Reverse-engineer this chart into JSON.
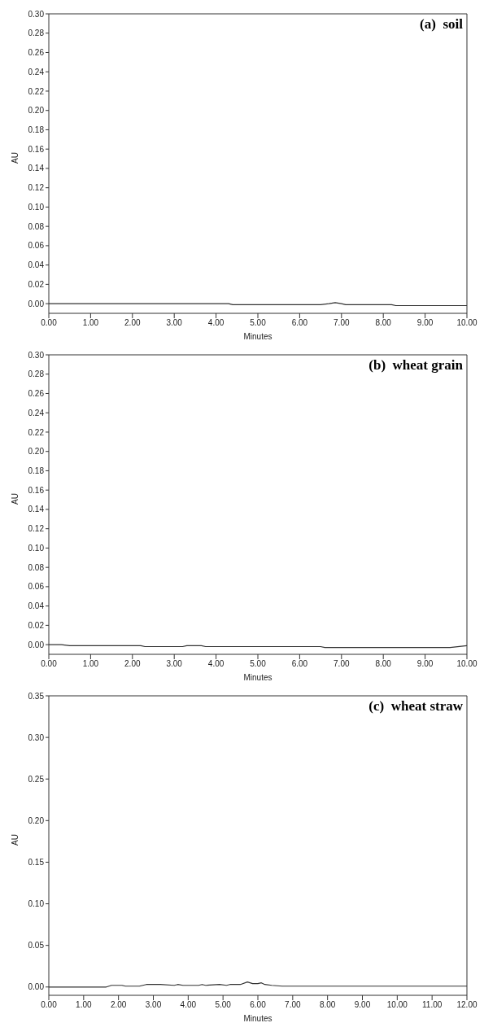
{
  "chart_data": [
    {
      "type": "line",
      "title": "(a)  soil",
      "xlabel": "Minutes",
      "ylabel": "AU",
      "x": [
        0,
        4.3,
        4.4,
        6.5,
        6.7,
        6.85,
        7.0,
        7.1,
        8.2,
        8.3,
        10.0
      ],
      "series": [
        {
          "color": "#333333",
          "values": [
            0,
            0,
            -0.001,
            -0.001,
            0,
            0.001,
            0,
            -0.001,
            -0.001,
            -0.002,
            -0.002
          ]
        }
      ],
      "xlim": [
        0,
        10
      ],
      "xticks": [
        {
          "value": 0,
          "label": "0.00"
        },
        {
          "value": 1,
          "label": "1.00"
        },
        {
          "value": 2,
          "label": "2.00"
        },
        {
          "value": 3,
          "label": "3.00"
        },
        {
          "value": 4,
          "label": "4.00"
        },
        {
          "value": 5,
          "label": "5.00"
        },
        {
          "value": 6,
          "label": "6.00"
        },
        {
          "value": 7,
          "label": "7.00"
        },
        {
          "value": 8,
          "label": "8.00"
        },
        {
          "value": 9,
          "label": "9.00"
        },
        {
          "value": 10,
          "label": "10.00"
        }
      ],
      "ylim": [
        -0.01,
        0.3
      ],
      "yticks": [
        {
          "value": 0,
          "label": "0.00"
        },
        0.02,
        0.04,
        0.06,
        0.08,
        {
          "value": 0.1,
          "label": "0.10"
        },
        0.12,
        0.14,
        0.16,
        0.18,
        {
          "value": 0.2,
          "label": "0.20"
        },
        0.22,
        0.24,
        0.26,
        0.28,
        {
          "value": 0.3,
          "label": "0.30"
        }
      ]
    },
    {
      "type": "line",
      "title": "(b)  wheat grain",
      "xlabel": "Minutes",
      "ylabel": "AU",
      "x": [
        0,
        0.3,
        0.5,
        2.2,
        2.3,
        3.2,
        3.3,
        3.65,
        3.75,
        6.5,
        6.6,
        9.6,
        10.0
      ],
      "series": [
        {
          "color": "#333333",
          "values": [
            0,
            0,
            -0.001,
            -0.001,
            -0.002,
            -0.002,
            -0.001,
            -0.001,
            -0.002,
            -0.002,
            -0.003,
            -0.003,
            -0.001
          ]
        }
      ],
      "xlim": [
        0,
        10
      ],
      "xticks": [
        {
          "value": 0,
          "label": "0.00"
        },
        {
          "value": 1,
          "label": "1.00"
        },
        {
          "value": 2,
          "label": "2.00"
        },
        {
          "value": 3,
          "label": "3.00"
        },
        {
          "value": 4,
          "label": "4.00"
        },
        {
          "value": 5,
          "label": "5.00"
        },
        {
          "value": 6,
          "label": "6.00"
        },
        {
          "value": 7,
          "label": "7.00"
        },
        {
          "value": 8,
          "label": "8.00"
        },
        {
          "value": 9,
          "label": "9.00"
        },
        {
          "value": 10,
          "label": "10.00"
        }
      ],
      "ylim": [
        -0.01,
        0.3
      ],
      "yticks": [
        {
          "value": 0,
          "label": "0.00"
        },
        0.02,
        0.04,
        0.06,
        0.08,
        {
          "value": 0.1,
          "label": "0.10"
        },
        0.12,
        0.14,
        0.16,
        0.18,
        {
          "value": 0.2,
          "label": "0.20"
        },
        0.22,
        0.24,
        0.26,
        0.28,
        {
          "value": 0.3,
          "label": "0.30"
        }
      ]
    },
    {
      "type": "line",
      "title": "(c)  wheat straw",
      "xlabel": "Minutes",
      "ylabel": "AU",
      "x": [
        0,
        1.65,
        1.8,
        2.1,
        2.2,
        2.6,
        2.8,
        3.2,
        3.6,
        3.7,
        3.85,
        4.3,
        4.4,
        4.5,
        4.9,
        5.1,
        5.2,
        5.5,
        5.7,
        5.85,
        6.0,
        6.1,
        6.2,
        6.4,
        6.7,
        12.0
      ],
      "series": [
        {
          "color": "#333333",
          "values": [
            0,
            0,
            0.002,
            0.002,
            0.001,
            0.001,
            0.003,
            0.003,
            0.002,
            0.003,
            0.002,
            0.002,
            0.003,
            0.002,
            0.003,
            0.002,
            0.003,
            0.003,
            0.006,
            0.004,
            0.004,
            0.005,
            0.003,
            0.002,
            0.001,
            0.001
          ]
        }
      ],
      "xlim": [
        0,
        12
      ],
      "xticks": [
        {
          "value": 0,
          "label": "0.00"
        },
        {
          "value": 1,
          "label": "1.00"
        },
        {
          "value": 2,
          "label": "2.00"
        },
        {
          "value": 3,
          "label": "3.00"
        },
        {
          "value": 4,
          "label": "4.00"
        },
        {
          "value": 5,
          "label": "5.00"
        },
        {
          "value": 6,
          "label": "6.00"
        },
        {
          "value": 7,
          "label": "7.00"
        },
        {
          "value": 8,
          "label": "8.00"
        },
        {
          "value": 9,
          "label": "9.00"
        },
        {
          "value": 10,
          "label": "10.00"
        },
        {
          "value": 11,
          "label": "11.00"
        },
        {
          "value": 12,
          "label": "12.00"
        }
      ],
      "ylim": [
        -0.01,
        0.35
      ],
      "yticks": [
        {
          "value": 0,
          "label": "0.00"
        },
        0.05,
        {
          "value": 0.1,
          "label": "0.10"
        },
        0.15,
        {
          "value": 0.2,
          "label": "0.20"
        },
        0.25,
        {
          "value": 0.3,
          "label": "0.30"
        },
        0.35
      ]
    }
  ]
}
